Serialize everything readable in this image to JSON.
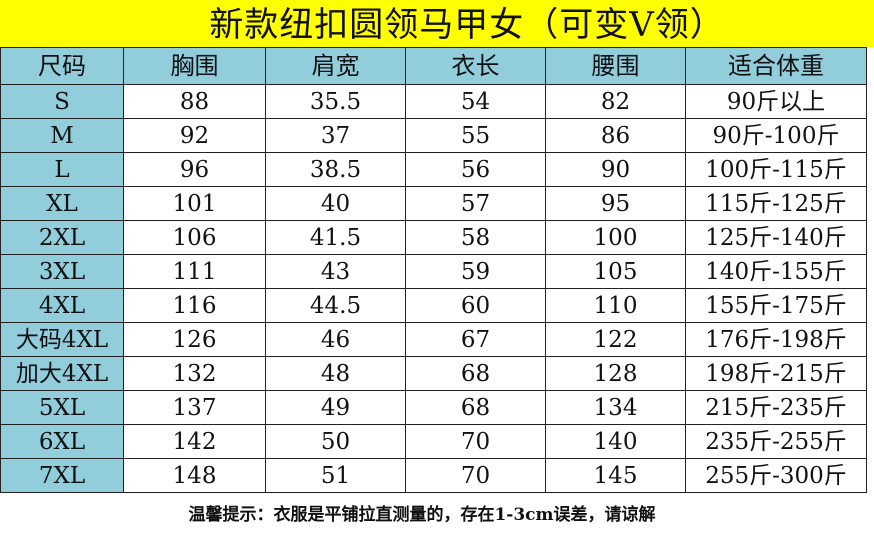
{
  "title": "新款纽扣圆领马甲女（可变V领）",
  "colors": {
    "title_bg": "#ffff00",
    "header_bg": "#92cddc"
  },
  "table": {
    "headers": [
      "尺码",
      "胸围",
      "肩宽",
      "衣长",
      "腰围",
      "适合体重"
    ],
    "rows": [
      [
        "S",
        "88",
        "35.5",
        "54",
        "82",
        "90斤以上"
      ],
      [
        "M",
        "92",
        "37",
        "55",
        "86",
        "90斤-100斤"
      ],
      [
        "L",
        "96",
        "38.5",
        "56",
        "90",
        "100斤-115斤"
      ],
      [
        "XL",
        "101",
        "40",
        "57",
        "95",
        "115斤-125斤"
      ],
      [
        "2XL",
        "106",
        "41.5",
        "58",
        "100",
        "125斤-140斤"
      ],
      [
        "3XL",
        "111",
        "43",
        "59",
        "105",
        "140斤-155斤"
      ],
      [
        "4XL",
        "116",
        "44.5",
        "60",
        "110",
        "155斤-175斤"
      ],
      [
        "大码4XL",
        "126",
        "46",
        "67",
        "122",
        "176斤-198斤"
      ],
      [
        "加大4XL",
        "132",
        "48",
        "68",
        "128",
        "198斤-215斤"
      ],
      [
        "5XL",
        "137",
        "49",
        "68",
        "134",
        "215斤-235斤"
      ],
      [
        "6XL",
        "142",
        "50",
        "70",
        "140",
        "235斤-255斤"
      ],
      [
        "7XL",
        "148",
        "51",
        "70",
        "145",
        "255斤-300斤"
      ]
    ]
  },
  "note": "温馨提示：衣服是平铺拉直测量的，存在1-3cm误差，请谅解"
}
